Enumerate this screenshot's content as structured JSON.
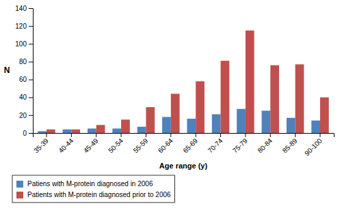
{
  "chart_data": {
    "type": "bar",
    "categories": [
      "35-39",
      "40-44",
      "45-49",
      "50-54",
      "55-59",
      "60-64",
      "65-69",
      "70-74",
      "75-79",
      "80-84",
      "85-89",
      "90-100"
    ],
    "series": [
      {
        "name": "Patiens with M-protein diagnosed in 2006",
        "color": "#4F81BD",
        "values": [
          2,
          4,
          5,
          5,
          7,
          18,
          16,
          21,
          27,
          25,
          17,
          14
        ]
      },
      {
        "name": "Patients with M-protein diagnosed prior to 2006",
        "color": "#C0504D",
        "values": [
          4,
          4,
          9,
          15,
          29,
          44,
          58,
          81,
          115,
          76,
          77,
          40
        ]
      }
    ],
    "xlabel": "Age range (y)",
    "ylabel": "N",
    "ylim": [
      0,
      140
    ],
    "yticks": [
      0,
      20,
      40,
      60,
      80,
      100,
      120,
      140
    ],
    "grid": false,
    "legend": "bottom"
  }
}
